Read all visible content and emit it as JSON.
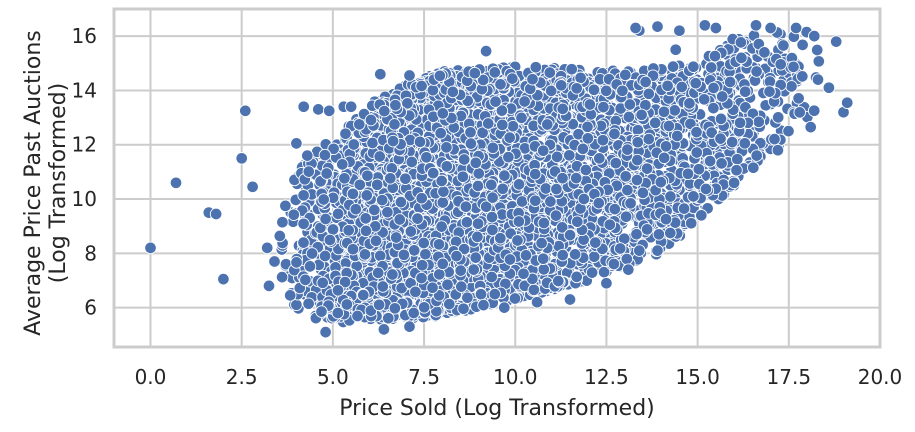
{
  "chart_data": {
    "type": "scatter",
    "title": "",
    "xlabel": "Price Sold (Log Transformed)",
    "ylabel_lines": [
      "Average Price Past Auctions",
      "(Log Transformed)"
    ],
    "xlim": [
      -1.0,
      20.0
    ],
    "ylim": [
      4.55,
      17.0
    ],
    "xticks": [
      0.0,
      2.5,
      5.0,
      7.5,
      10.0,
      12.5,
      15.0,
      17.5,
      20.0
    ],
    "xtick_labels": [
      "0.0",
      "2.5",
      "5.0",
      "7.5",
      "10.0",
      "12.5",
      "15.0",
      "17.5",
      "20.0"
    ],
    "yticks": [
      6,
      8,
      10,
      12,
      14,
      16
    ],
    "ytick_labels": [
      "6",
      "8",
      "10",
      "12",
      "14",
      "16"
    ],
    "grid": true,
    "legend": "none",
    "marker_color": "#4c72b0",
    "marker_edge_color": "#ffffff",
    "background_color": "#ffffff",
    "grid_color": "#cccccc",
    "notable_points": [
      {
        "x": 0.0,
        "y": 8.2
      },
      {
        "x": 0.7,
        "y": 10.6
      },
      {
        "x": 1.6,
        "y": 9.5
      },
      {
        "x": 1.8,
        "y": 9.45
      },
      {
        "x": 2.0,
        "y": 7.05
      },
      {
        "x": 2.5,
        "y": 11.5
      },
      {
        "x": 2.6,
        "y": 13.25
      },
      {
        "x": 2.8,
        "y": 10.45
      },
      {
        "x": 3.2,
        "y": 8.2
      },
      {
        "x": 3.25,
        "y": 6.8
      },
      {
        "x": 3.4,
        "y": 7.7
      },
      {
        "x": 3.7,
        "y": 9.75
      },
      {
        "x": 4.0,
        "y": 12.05
      },
      {
        "x": 4.2,
        "y": 13.4
      },
      {
        "x": 4.3,
        "y": 11.6
      },
      {
        "x": 4.6,
        "y": 13.3
      },
      {
        "x": 4.9,
        "y": 13.25
      },
      {
        "x": 4.8,
        "y": 5.1
      },
      {
        "x": 5.3,
        "y": 13.4
      },
      {
        "x": 5.5,
        "y": 13.4
      },
      {
        "x": 6.3,
        "y": 14.6
      },
      {
        "x": 6.4,
        "y": 5.2
      },
      {
        "x": 7.1,
        "y": 14.55
      },
      {
        "x": 7.1,
        "y": 5.3
      },
      {
        "x": 9.2,
        "y": 15.45
      },
      {
        "x": 9.7,
        "y": 6.0
      },
      {
        "x": 10.6,
        "y": 6.2
      },
      {
        "x": 11.5,
        "y": 6.3
      },
      {
        "x": 12.5,
        "y": 6.9
      },
      {
        "x": 13.1,
        "y": 7.4
      },
      {
        "x": 13.4,
        "y": 8.1
      },
      {
        "x": 13.4,
        "y": 16.2
      },
      {
        "x": 13.3,
        "y": 16.3
      },
      {
        "x": 13.9,
        "y": 16.35
      },
      {
        "x": 13.9,
        "y": 8.1
      },
      {
        "x": 14.4,
        "y": 15.5
      },
      {
        "x": 14.5,
        "y": 16.2
      },
      {
        "x": 15.1,
        "y": 9.4
      },
      {
        "x": 15.2,
        "y": 16.4
      },
      {
        "x": 15.5,
        "y": 16.3
      },
      {
        "x": 16.0,
        "y": 10.6
      },
      {
        "x": 16.2,
        "y": 15.2
      },
      {
        "x": 16.6,
        "y": 16.4
      },
      {
        "x": 17.0,
        "y": 16.3
      },
      {
        "x": 17.2,
        "y": 11.8
      },
      {
        "x": 17.7,
        "y": 16.3
      },
      {
        "x": 18.1,
        "y": 12.65
      },
      {
        "x": 18.2,
        "y": 16.0
      },
      {
        "x": 18.3,
        "y": 14.4
      },
      {
        "x": 18.6,
        "y": 14.1
      },
      {
        "x": 18.8,
        "y": 15.8
      },
      {
        "x": 19.0,
        "y": 13.2
      },
      {
        "x": 19.1,
        "y": 13.55
      }
    ],
    "cloud": {
      "n_points": 5000,
      "x_range": [
        3.5,
        18.5
      ],
      "x_mode": 9.0,
      "y_floor_at_x": [
        [
          3.5,
          7.0
        ],
        [
          4.0,
          5.8
        ],
        [
          5.0,
          5.4
        ],
        [
          8.0,
          5.7
        ],
        [
          10.0,
          6.3
        ],
        [
          12.0,
          7.0
        ],
        [
          14.0,
          8.0
        ],
        [
          16.0,
          10.5
        ],
        [
          18.0,
          12.8
        ]
      ],
      "y_ceiling_at_x": [
        [
          3.5,
          9.5
        ],
        [
          4.0,
          11.0
        ],
        [
          5.0,
          12.3
        ],
        [
          6.0,
          13.5
        ],
        [
          7.0,
          14.2
        ],
        [
          8.0,
          14.7
        ],
        [
          10.0,
          14.9
        ],
        [
          13.0,
          14.7
        ],
        [
          15.0,
          15.0
        ],
        [
          16.0,
          16.0
        ],
        [
          18.0,
          16.3
        ]
      ]
    }
  }
}
